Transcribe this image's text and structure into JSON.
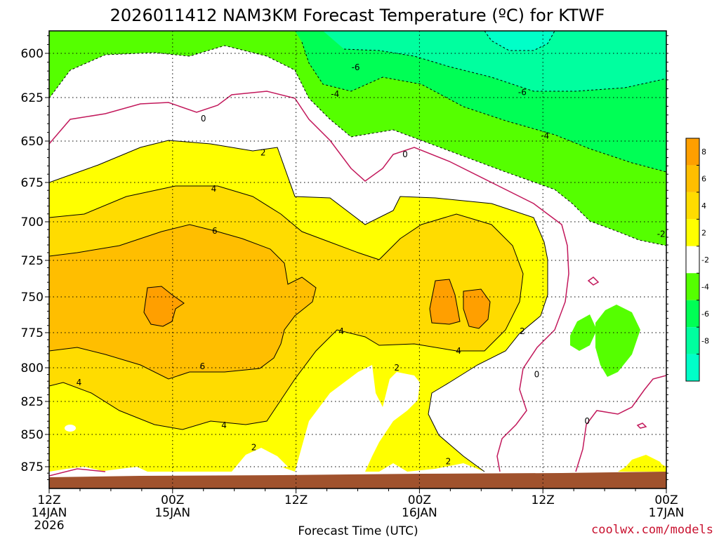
{
  "chart_data": {
    "type": "heatmap",
    "title": "2026011412 NAM3KM Forecast Temperature (ºC) for KTWF",
    "xlabel": "Forecast Time (UTC)",
    "ylabel": "",
    "y_ticks": [
      "600",
      "625",
      "650",
      "675",
      "700",
      "725",
      "750",
      "775",
      "800",
      "825",
      "850",
      "875"
    ],
    "y_values": [
      600,
      625,
      650,
      675,
      700,
      725,
      750,
      775,
      800,
      825,
      850,
      875
    ],
    "ylim": [
      887,
      587
    ],
    "y_reversed": true,
    "x_ticks": [
      {
        "hour": 0,
        "line1": "12Z",
        "line2": "14JAN",
        "line3": "2026"
      },
      {
        "hour": 12,
        "line1": "00Z",
        "line2": "15JAN",
        "line3": ""
      },
      {
        "hour": 24,
        "line1": "12Z",
        "line2": "",
        "line3": ""
      },
      {
        "hour": 36,
        "line1": "00Z",
        "line2": "16JAN",
        "line3": ""
      },
      {
        "hour": 48,
        "line1": "12Z",
        "line2": "",
        "line3": ""
      },
      {
        "hour": 60,
        "line1": "00Z",
        "line2": "17JAN",
        "line3": ""
      }
    ],
    "xlim": [
      0,
      60
    ],
    "grid": true,
    "units": "ºC",
    "colorbar": {
      "labels": [
        "8",
        "6",
        "4",
        "2",
        "-2",
        "-4",
        "-6",
        "-8"
      ],
      "bands": [
        {
          "from": 8,
          "to": 10,
          "color": "#ff9f00"
        },
        {
          "from": 6,
          "to": 8,
          "color": "#ffbe00"
        },
        {
          "from": 4,
          "to": 6,
          "color": "#ffdc00"
        },
        {
          "from": 2,
          "to": 4,
          "color": "#ffff00"
        },
        {
          "from": -2,
          "to": 2,
          "color": "#ffffff"
        },
        {
          "from": -4,
          "to": -2,
          "color": "#55ff00"
        },
        {
          "from": -6,
          "to": -4,
          "color": "#00ff55"
        },
        {
          "from": -8,
          "to": -6,
          "color": "#00ff9f"
        },
        {
          "from": -10,
          "to": -8,
          "color": "#00ffc8"
        }
      ]
    },
    "contour_labels": [
      {
        "text": "-6",
        "hour": 29.8,
        "p": 608
      },
      {
        "text": "-4",
        "hour": 27.8,
        "p": 623
      },
      {
        "text": "-6",
        "hour": 46.0,
        "p": 622
      },
      {
        "text": "-4",
        "hour": 48.2,
        "p": 647
      },
      {
        "text": "-2",
        "hour": 59.5,
        "p": 708
      },
      {
        "text": "0",
        "hour": 15.0,
        "p": 637
      },
      {
        "text": "0",
        "hour": 34.6,
        "p": 658
      },
      {
        "text": "0",
        "hour": 47.4,
        "p": 805
      },
      {
        "text": "0",
        "hour": 52.3,
        "p": 840
      },
      {
        "text": "2",
        "hour": 20.8,
        "p": 657
      },
      {
        "text": "2",
        "hour": 33.8,
        "p": 800
      },
      {
        "text": "2",
        "hour": 19.9,
        "p": 860
      },
      {
        "text": "2",
        "hour": 38.8,
        "p": 871
      },
      {
        "text": "2",
        "hour": 46.0,
        "p": 774
      },
      {
        "text": "4",
        "hour": 16.0,
        "p": 679
      },
      {
        "text": "4",
        "hour": 28.4,
        "p": 774
      },
      {
        "text": "4",
        "hour": 39.8,
        "p": 788
      },
      {
        "text": "4",
        "hour": 2.9,
        "p": 811
      },
      {
        "text": "4",
        "hour": 17.0,
        "p": 843
      },
      {
        "text": "6",
        "hour": 16.1,
        "p": 706
      },
      {
        "text": "6",
        "hour": 14.9,
        "p": 799
      }
    ],
    "terrain_color": "#a0522d"
  },
  "credit": "coolwx.com/models"
}
